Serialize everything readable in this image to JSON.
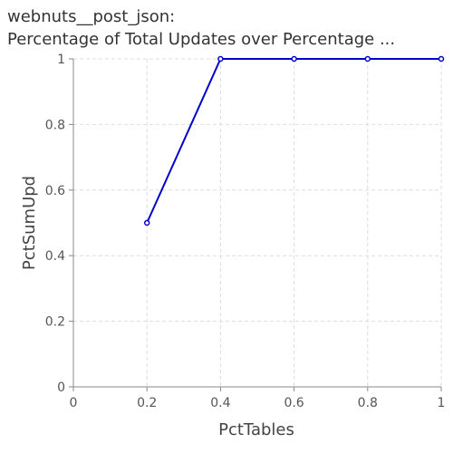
{
  "title_lines": [
    "webnuts__post_json:",
    "Percentage of Total Updates over Percentage ..."
  ],
  "chart_data": {
    "type": "line",
    "title": "webnuts__post_json: Percentage of Total Updates over Percentage ...",
    "xlabel": "PctTables",
    "ylabel": "PctSumUpd",
    "xlim": [
      0,
      1
    ],
    "ylim": [
      0,
      1
    ],
    "x_ticks": [
      "0",
      "0.2",
      "0.4",
      "0.6",
      "0.8",
      "1"
    ],
    "y_ticks": [
      "0",
      "0.2",
      "0.4",
      "0.6",
      "0.8",
      "1"
    ],
    "grid": true,
    "series": [
      {
        "color": "#0000cc",
        "x": [
          0.2,
          0.4,
          0.6,
          0.8,
          1.0
        ],
        "y": [
          0.5,
          1.0,
          1.0,
          1.0,
          1.0
        ]
      }
    ]
  }
}
